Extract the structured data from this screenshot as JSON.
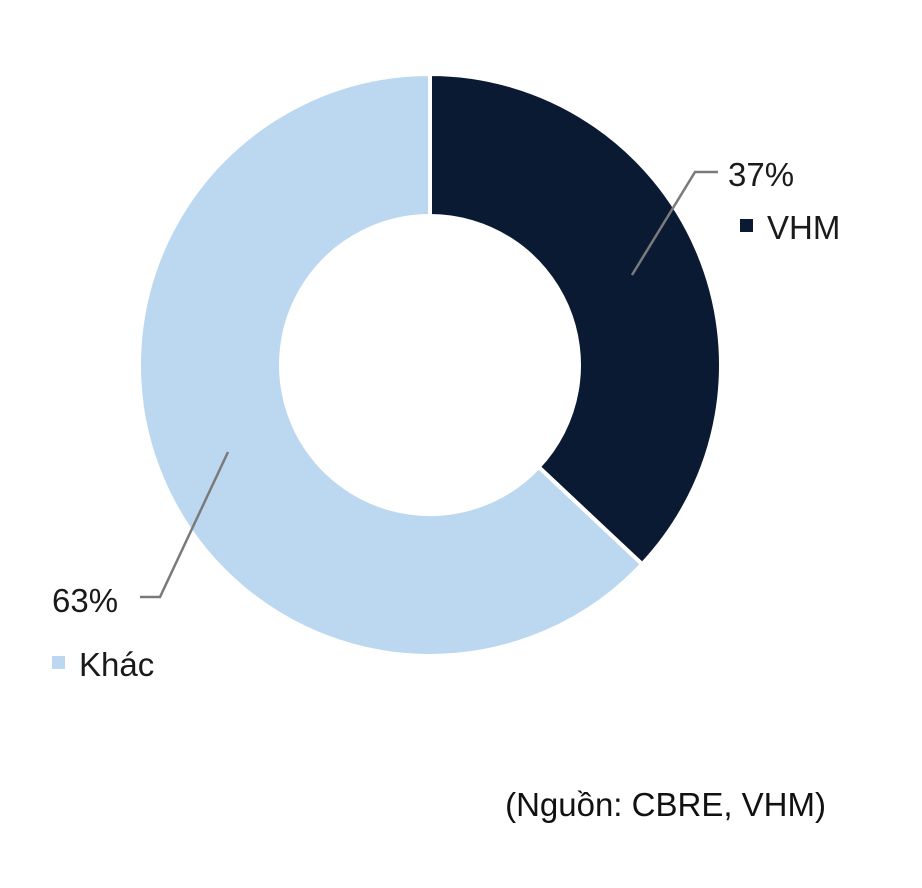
{
  "chart_data": {
    "type": "pie",
    "variant": "donut",
    "title": "",
    "slices": [
      {
        "label": "VHM",
        "value": 37,
        "value_label": "37%",
        "color": "#0b1a33"
      },
      {
        "label": "Khác",
        "value": 63,
        "value_label": "63%",
        "color": "#bcd8f0"
      }
    ],
    "start_angle_deg": 0,
    "direction": "clockwise",
    "legend": "inline-labels"
  },
  "source_note": "(Nguồn: CBRE, VHM)"
}
